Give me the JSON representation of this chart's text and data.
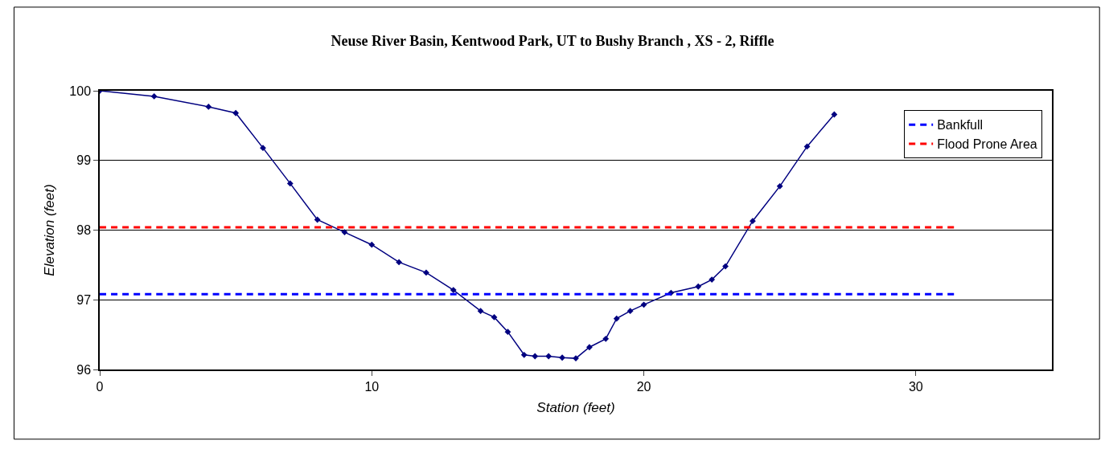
{
  "chart_data": {
    "type": "line",
    "title": "Neuse River Basin, Kentwood Park, UT to Bushy Branch , XS - 2, Riffle",
    "xlabel": "Station (feet)",
    "ylabel": "Elevation (feet)",
    "series": [
      {
        "color": "#000080",
        "marker": "diamond",
        "line_style": "solid",
        "x": [
          0,
          2,
          4,
          5,
          6,
          7,
          8,
          9,
          10,
          11,
          12,
          13,
          14,
          14.5,
          15,
          15.6,
          16,
          16.5,
          17,
          17.5,
          18,
          18.6,
          19,
          19.5,
          20,
          21,
          22,
          22.5,
          23,
          24,
          25,
          26,
          27
        ],
        "values": [
          100,
          99.92,
          99.77,
          99.68,
          99.18,
          98.67,
          98.15,
          97.97,
          97.79,
          97.54,
          97.39,
          97.14,
          96.84,
          96.75,
          96.54,
          96.21,
          96.19,
          96.19,
          96.17,
          96.16,
          96.32,
          96.44,
          96.73,
          96.84,
          96.93,
          97.1,
          97.19,
          97.29,
          97.48,
          98.13,
          98.63,
          99.2,
          99.66
        ]
      },
      {
        "name": "Bankfull",
        "color": "#0000ff",
        "marker": "none",
        "line_style": "dashed",
        "x": [
          0,
          31.4
        ],
        "values": [
          97.08,
          97.08
        ]
      },
      {
        "name": "Flood Prone Area",
        "color": "#ff0000",
        "marker": "none",
        "line_style": "dashed",
        "x": [
          0,
          31.4
        ],
        "values": [
          98.04,
          98.04
        ]
      }
    ],
    "xlim": [
      0,
      35
    ],
    "xticks": [
      0,
      10,
      20,
      30
    ],
    "ylim": [
      96,
      100
    ],
    "yticks": [
      96,
      97,
      98,
      99,
      100
    ],
    "grid": "y",
    "legend": "top right"
  }
}
